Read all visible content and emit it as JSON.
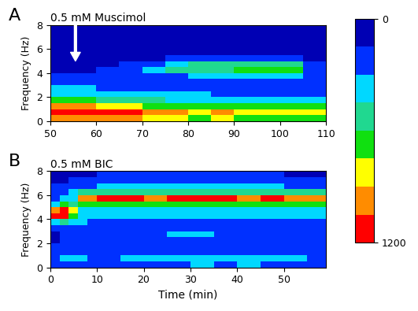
{
  "chart_data": [
    {
      "type": "heatmap",
      "panel_label": "A",
      "title": "0.5 mM Muscimol",
      "y_label": "Frequency (Hz)",
      "xlim": [
        50,
        110
      ],
      "xticks": [
        50,
        60,
        70,
        80,
        90,
        100,
        110
      ],
      "ylim": [
        0,
        8
      ],
      "yticks": [
        0,
        2,
        4,
        6,
        8
      ],
      "arrow": {
        "x": 55.5,
        "y": 5
      },
      "x_edges": [
        50,
        55,
        60,
        65,
        70,
        75,
        80,
        85,
        90,
        95,
        100,
        105,
        110
      ],
      "y_edges": [
        0,
        0.5,
        1,
        1.5,
        2,
        2.5,
        3,
        3.5,
        4,
        4.5,
        5,
        5.5,
        6,
        6.5,
        7,
        7.5,
        8
      ],
      "cells": [
        [
          900,
          1000,
          950,
          900,
          800,
          750,
          700,
          750,
          700,
          650,
          700,
          700
        ],
        [
          1150,
          1150,
          1100,
          1050,
          950,
          900,
          850,
          900,
          850,
          800,
          850,
          800
        ],
        [
          900,
          950,
          850,
          800,
          700,
          650,
          600,
          650,
          600,
          600,
          650,
          600
        ],
        [
          600,
          600,
          550,
          500,
          450,
          400,
          400,
          400,
          400,
          400,
          400,
          400
        ],
        [
          400,
          400,
          350,
          300,
          300,
          300,
          300,
          250,
          250,
          250,
          250,
          250
        ],
        [
          300,
          300,
          250,
          250,
          250,
          200,
          200,
          200,
          200,
          200,
          200,
          200
        ],
        [
          200,
          200,
          200,
          200,
          150,
          150,
          150,
          150,
          150,
          150,
          150,
          150
        ],
        [
          150,
          150,
          150,
          200,
          250,
          250,
          300,
          300,
          300,
          300,
          300,
          150
        ],
        [
          100,
          100,
          150,
          250,
          300,
          450,
          500,
          550,
          600,
          600,
          600,
          200
        ],
        [
          100,
          100,
          100,
          150,
          200,
          350,
          450,
          500,
          550,
          550,
          500,
          150
        ],
        [
          50,
          50,
          50,
          50,
          100,
          150,
          200,
          250,
          250,
          250,
          200,
          100
        ],
        [
          50,
          50,
          50,
          50,
          50,
          50,
          50,
          50,
          50,
          50,
          50,
          50
        ],
        [
          30,
          30,
          30,
          30,
          30,
          30,
          30,
          30,
          30,
          30,
          30,
          30
        ],
        [
          30,
          30,
          30,
          30,
          30,
          30,
          30,
          30,
          30,
          30,
          30,
          30
        ],
        [
          30,
          30,
          30,
          30,
          30,
          30,
          30,
          30,
          30,
          30,
          30,
          30
        ],
        [
          30,
          30,
          30,
          30,
          30,
          30,
          30,
          30,
          30,
          30,
          30,
          30
        ]
      ]
    },
    {
      "type": "heatmap",
      "panel_label": "B",
      "title": "0.5 mM BIC",
      "y_label": "Frequency (Hz)",
      "x_label": "Time (min)",
      "xlim": [
        0,
        59
      ],
      "xticks": [
        0,
        10,
        20,
        30,
        40,
        50
      ],
      "ylim": [
        0,
        8
      ],
      "yticks": [
        0,
        2,
        4,
        6,
        8
      ],
      "x_edges": [
        0,
        2,
        4,
        6,
        8,
        10,
        15,
        20,
        25,
        30,
        35,
        40,
        45,
        50,
        55,
        59
      ],
      "y_edges": [
        0,
        0.5,
        1,
        1.5,
        2,
        2.5,
        3,
        3.5,
        4,
        4.5,
        5,
        5.5,
        6,
        6.5,
        7,
        7.5,
        8
      ],
      "cells": [
        [
          150,
          200,
          250,
          250,
          200,
          200,
          250,
          250,
          250,
          300,
          250,
          300,
          250,
          250,
          250
        ],
        [
          200,
          300,
          300,
          350,
          250,
          250,
          300,
          350,
          300,
          350,
          300,
          300,
          300,
          300,
          250
        ],
        [
          150,
          250,
          250,
          250,
          200,
          200,
          250,
          250,
          250,
          250,
          250,
          250,
          250,
          250,
          200
        ],
        [
          150,
          200,
          200,
          200,
          150,
          200,
          200,
          200,
          200,
          200,
          200,
          200,
          200,
          200,
          200
        ],
        [
          100,
          150,
          150,
          200,
          150,
          200,
          200,
          250,
          250,
          250,
          250,
          250,
          250,
          250,
          200
        ],
        [
          100,
          150,
          150,
          200,
          150,
          200,
          250,
          250,
          300,
          300,
          250,
          250,
          250,
          250,
          250
        ],
        [
          150,
          200,
          200,
          250,
          200,
          200,
          200,
          200,
          200,
          200,
          200,
          200,
          200,
          200,
          200
        ],
        [
          400,
          500,
          400,
          300,
          250,
          250,
          250,
          250,
          250,
          250,
          250,
          250,
          250,
          250,
          250
        ],
        [
          1100,
          1150,
          700,
          350,
          300,
          300,
          300,
          300,
          300,
          300,
          300,
          300,
          300,
          300,
          300
        ],
        [
          900,
          1150,
          800,
          400,
          350,
          350,
          300,
          350,
          300,
          300,
          300,
          300,
          300,
          300,
          300
        ],
        [
          400,
          600,
          500,
          600,
          700,
          700,
          650,
          650,
          650,
          650,
          650,
          650,
          650,
          650,
          650
        ],
        [
          250,
          300,
          400,
          900,
          1000,
          1050,
          1050,
          1000,
          1050,
          1100,
          1050,
          1000,
          1050,
          1000,
          1000
        ],
        [
          200,
          200,
          300,
          500,
          500,
          550,
          500,
          550,
          500,
          500,
          500,
          500,
          500,
          450,
          450
        ],
        [
          150,
          150,
          200,
          250,
          250,
          300,
          300,
          300,
          300,
          300,
          300,
          300,
          300,
          250,
          250
        ],
        [
          100,
          100,
          150,
          150,
          150,
          200,
          200,
          200,
          200,
          200,
          200,
          200,
          200,
          150,
          150
        ],
        [
          100,
          100,
          100,
          100,
          100,
          150,
          150,
          150,
          150,
          150,
          150,
          150,
          150,
          100,
          100
        ]
      ]
    }
  ],
  "colorbar": {
    "range": [
      0,
      1200
    ],
    "ticks": [
      0,
      1200
    ],
    "colors": [
      "#0000b4",
      "#0030ff",
      "#00d8ff",
      "#20d890",
      "#10e010",
      "#ffff00",
      "#ff8c00",
      "#ff0000"
    ]
  }
}
